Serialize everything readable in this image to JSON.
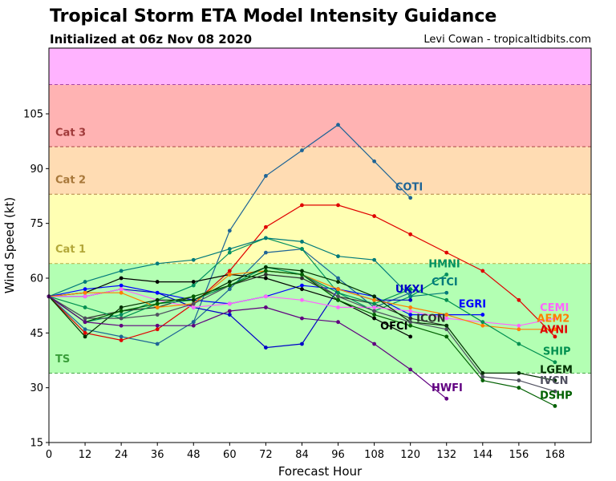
{
  "header": {
    "title": "Tropical Storm ETA Model Intensity Guidance",
    "subtitle": "Initialized at 06z Nov 08 2020",
    "credit": "Levi Cowan - tropicaltidbits.com"
  },
  "chart_data": {
    "type": "line",
    "title": "Tropical Storm ETA Model Intensity Guidance",
    "subtitle": "Initialized at 06z Nov 08 2020",
    "xlabel": "Forecast Hour",
    "ylabel": "Wind Speed (kt)",
    "xlim": [
      0,
      180
    ],
    "ylim": [
      15,
      123
    ],
    "xticks": [
      0,
      12,
      24,
      36,
      48,
      60,
      72,
      84,
      96,
      108,
      120,
      132,
      144,
      156,
      168
    ],
    "yticks": [
      15,
      30,
      45,
      60,
      75,
      90,
      105
    ],
    "grid": false,
    "bands": [
      {
        "label": "TS",
        "from": 34,
        "to": 64,
        "color": "#b3ffb3",
        "label_color": "#3a9e3a",
        "label_value": 37
      },
      {
        "label": "Cat 1",
        "from": 64,
        "to": 83,
        "color": "#ffffb3",
        "label_color": "#b3a83a",
        "label_value": 67
      },
      {
        "label": "Cat 2",
        "from": 83,
        "to": 96,
        "color": "#ffdcb3",
        "label_color": "#a8783a",
        "label_value": 86
      },
      {
        "label": "Cat 3",
        "from": 96,
        "to": 113,
        "color": "#ffb3b3",
        "label_color": "#a03a3a",
        "label_value": 99
      },
      {
        "label": "",
        "from": 113,
        "to": 123,
        "color": "#ffb3ff",
        "label_color": "#a03aa0",
        "label_value": 0
      }
    ],
    "series": [
      {
        "name": "COTI",
        "color": "#1e6496",
        "label_x": 115,
        "label_y": 84,
        "points": [
          [
            0,
            55
          ],
          [
            12,
            46
          ],
          [
            24,
            44
          ],
          [
            36,
            42
          ],
          [
            48,
            48
          ],
          [
            60,
            57
          ],
          [
            72,
            67
          ],
          [
            84,
            68
          ],
          [
            96,
            60
          ],
          [
            108,
            52
          ],
          [
            120,
            56
          ]
        ],
        "extra": [
          [
            60,
            73
          ],
          [
            72,
            88
          ],
          [
            84,
            95
          ],
          [
            96,
            102
          ],
          [
            108,
            92
          ],
          [
            120,
            82
          ]
        ]
      },
      {
        "name": "AVNI",
        "color": "#e00000",
        "label_x": 163,
        "label_y": 45,
        "points": [
          [
            0,
            55
          ],
          [
            12,
            45
          ],
          [
            24,
            43
          ],
          [
            36,
            46
          ],
          [
            48,
            53
          ],
          [
            60,
            62
          ],
          [
            72,
            74
          ],
          [
            84,
            80
          ],
          [
            96,
            80
          ],
          [
            108,
            77
          ],
          [
            120,
            72
          ],
          [
            132,
            67
          ],
          [
            144,
            62
          ],
          [
            156,
            54
          ],
          [
            168,
            44
          ]
        ]
      },
      {
        "name": "HMNI",
        "color": "#009060",
        "label_x": 126,
        "label_y": 63,
        "points": [
          [
            0,
            55
          ],
          [
            12,
            48
          ],
          [
            24,
            50
          ],
          [
            36,
            54
          ],
          [
            48,
            58
          ],
          [
            60,
            67
          ],
          [
            72,
            71
          ],
          [
            84,
            68
          ],
          [
            96,
            56
          ],
          [
            108,
            51
          ],
          [
            120,
            55
          ],
          [
            132,
            61
          ]
        ]
      },
      {
        "name": "CTCI",
        "color": "#007a7a",
        "label_x": 127,
        "label_y": 58,
        "points": [
          [
            0,
            55
          ],
          [
            12,
            59
          ],
          [
            24,
            62
          ],
          [
            36,
            64
          ],
          [
            48,
            65
          ],
          [
            60,
            68
          ],
          [
            72,
            71
          ],
          [
            84,
            70
          ],
          [
            96,
            66
          ],
          [
            108,
            65
          ],
          [
            120,
            55
          ],
          [
            132,
            56
          ]
        ]
      },
      {
        "name": "UKXI",
        "color": "#0000c8",
        "label_x": 115,
        "label_y": 56,
        "points": [
          [
            0,
            55
          ],
          [
            12,
            55
          ],
          [
            24,
            57
          ],
          [
            36,
            56
          ],
          [
            48,
            52
          ],
          [
            60,
            50
          ],
          [
            72,
            41
          ],
          [
            84,
            42
          ],
          [
            96,
            57
          ],
          [
            108,
            54
          ],
          [
            120,
            54
          ]
        ]
      },
      {
        "name": "EGRI",
        "color": "#0000ff",
        "label_x": 136,
        "label_y": 52,
        "points": [
          [
            0,
            55
          ],
          [
            12,
            57
          ],
          [
            24,
            58
          ],
          [
            36,
            56
          ],
          [
            48,
            54
          ],
          [
            60,
            53
          ],
          [
            72,
            55
          ],
          [
            84,
            58
          ],
          [
            96,
            57
          ],
          [
            108,
            55
          ],
          [
            120,
            50
          ],
          [
            132,
            50
          ],
          [
            144,
            50
          ]
        ]
      },
      {
        "name": "OFCI",
        "color": "#000000",
        "label_x": 110,
        "label_y": 46,
        "points": [
          [
            0,
            55
          ],
          [
            12,
            56
          ],
          [
            24,
            60
          ],
          [
            36,
            59
          ],
          [
            48,
            59
          ],
          [
            60,
            61
          ],
          [
            72,
            60
          ],
          [
            84,
            57
          ],
          [
            96,
            54
          ],
          [
            108,
            49
          ],
          [
            120,
            44
          ]
        ]
      },
      {
        "name": "ICON",
        "color": "#303030",
        "label_x": 122,
        "label_y": 48,
        "points": [
          [
            0,
            55
          ],
          [
            12,
            49
          ],
          [
            24,
            51
          ],
          [
            36,
            52
          ],
          [
            48,
            55
          ],
          [
            60,
            58
          ],
          [
            72,
            61
          ],
          [
            84,
            60
          ],
          [
            96,
            55
          ],
          [
            108,
            53
          ],
          [
            120,
            49
          ],
          [
            132,
            47
          ]
        ]
      },
      {
        "name": "CEMI",
        "color": "#ff66ff",
        "label_x": 163,
        "label_y": 51,
        "points": [
          [
            0,
            55
          ],
          [
            12,
            55
          ],
          [
            24,
            57
          ],
          [
            36,
            54
          ],
          [
            48,
            52
          ],
          [
            60,
            53
          ],
          [
            72,
            55
          ],
          [
            84,
            54
          ],
          [
            96,
            52
          ],
          [
            108,
            52
          ],
          [
            120,
            51
          ],
          [
            132,
            49
          ],
          [
            144,
            48
          ],
          [
            156,
            47
          ],
          [
            168,
            49
          ]
        ]
      },
      {
        "name": "AEM2",
        "color": "#ff8000",
        "label_x": 162,
        "label_y": 48,
        "points": [
          [
            0,
            55
          ],
          [
            12,
            56
          ],
          [
            24,
            56
          ],
          [
            36,
            52
          ],
          [
            48,
            53
          ],
          [
            60,
            61
          ],
          [
            72,
            62
          ],
          [
            84,
            61
          ],
          [
            96,
            57
          ],
          [
            108,
            54
          ],
          [
            120,
            52
          ],
          [
            132,
            50
          ],
          [
            144,
            47
          ],
          [
            156,
            46
          ],
          [
            168,
            46
          ]
        ]
      },
      {
        "name": "SHIP",
        "color": "#009050",
        "label_x": 164,
        "label_y": 39,
        "points": [
          [
            0,
            55
          ],
          [
            12,
            52
          ],
          [
            24,
            49
          ],
          [
            36,
            53
          ],
          [
            48,
            54
          ],
          [
            60,
            58
          ],
          [
            72,
            63
          ],
          [
            84,
            61
          ],
          [
            96,
            56
          ],
          [
            108,
            53
          ],
          [
            120,
            57
          ],
          [
            132,
            54
          ],
          [
            144,
            48
          ],
          [
            156,
            42
          ],
          [
            168,
            37
          ]
        ]
      },
      {
        "name": "LGEM",
        "color": "#003000",
        "label_x": 163,
        "label_y": 34,
        "points": [
          [
            0,
            55
          ],
          [
            12,
            44
          ],
          [
            24,
            52
          ],
          [
            36,
            54
          ],
          [
            48,
            54
          ],
          [
            60,
            59
          ],
          [
            72,
            63
          ],
          [
            84,
            62
          ],
          [
            96,
            59
          ],
          [
            108,
            55
          ],
          [
            120,
            48
          ],
          [
            132,
            47
          ],
          [
            144,
            34
          ],
          [
            156,
            34
          ],
          [
            168,
            32
          ]
        ]
      },
      {
        "name": "IVCN",
        "color": "#505060",
        "label_x": 163,
        "label_y": 31,
        "points": [
          [
            0,
            55
          ],
          [
            12,
            49
          ],
          [
            24,
            49
          ],
          [
            36,
            50
          ],
          [
            48,
            53
          ],
          [
            60,
            58
          ],
          [
            72,
            62
          ],
          [
            84,
            61
          ],
          [
            96,
            55
          ],
          [
            108,
            51
          ],
          [
            120,
            48
          ],
          [
            132,
            46
          ],
          [
            144,
            33
          ],
          [
            156,
            32
          ],
          [
            168,
            29
          ]
        ]
      },
      {
        "name": "DSHP",
        "color": "#006000",
        "label_x": 163,
        "label_y": 27,
        "points": [
          [
            0,
            55
          ],
          [
            12,
            48
          ],
          [
            24,
            51
          ],
          [
            36,
            53
          ],
          [
            48,
            55
          ],
          [
            60,
            58
          ],
          [
            72,
            62
          ],
          [
            84,
            61
          ],
          [
            96,
            54
          ],
          [
            108,
            50
          ],
          [
            120,
            47
          ],
          [
            132,
            44
          ],
          [
            144,
            32
          ],
          [
            156,
            30
          ],
          [
            168,
            25
          ]
        ]
      },
      {
        "name": "HWFI",
        "color": "#600080",
        "label_x": 127,
        "label_y": 29,
        "points": [
          [
            0,
            55
          ],
          [
            12,
            48
          ],
          [
            24,
            47
          ],
          [
            36,
            47
          ],
          [
            48,
            47
          ],
          [
            60,
            51
          ],
          [
            72,
            52
          ],
          [
            84,
            49
          ],
          [
            96,
            48
          ],
          [
            108,
            42
          ],
          [
            120,
            35
          ],
          [
            132,
            27
          ]
        ]
      }
    ]
  }
}
